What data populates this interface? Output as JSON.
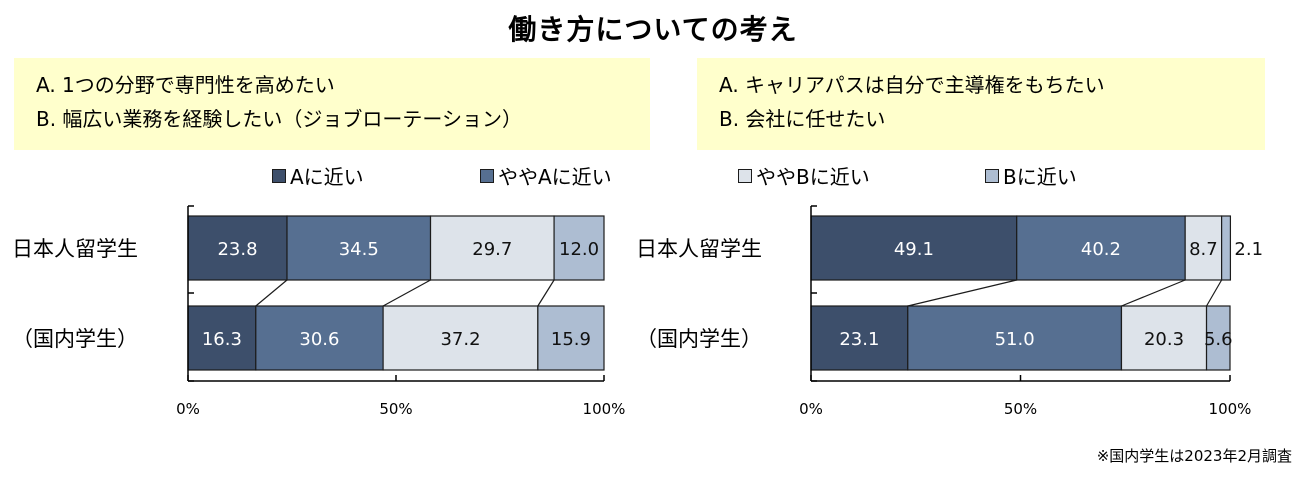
{
  "title": "働き方についての考え",
  "note": "※国内学生は2023年2月調査",
  "questions": [
    {
      "a": "A. 1つの分野で専門性を高めたい",
      "b": "B. 幅広い業務を経験したい（ジョブローテーション）"
    },
    {
      "a": "A. キャリアパスは自分で主導権をもちたい",
      "b": "B. 会社に任せたい"
    }
  ],
  "legend": [
    {
      "label": "Aに近い",
      "color": "#3d4f6b"
    },
    {
      "label": "ややAに近い",
      "color": "#566f91"
    },
    {
      "label": "ややBに近い",
      "color": "#dde3ea"
    },
    {
      "label": "Bに近い",
      "color": "#adbdd2"
    }
  ],
  "chart_data": [
    {
      "type": "bar",
      "stacked": true,
      "orientation": "horizontal",
      "percent": true,
      "categories": [
        "日本人留学生",
        "（国内学生）"
      ],
      "series": [
        {
          "name": "Aに近い",
          "values": [
            23.8,
            16.3
          ]
        },
        {
          "name": "ややAに近い",
          "values": [
            34.5,
            30.6
          ]
        },
        {
          "name": "ややBに近い",
          "values": [
            29.7,
            37.2
          ]
        },
        {
          "name": "Bに近い",
          "values": [
            12.0,
            15.9
          ]
        }
      ],
      "value_labels": [
        [
          "23.8",
          "34.5",
          "29.7",
          "12.0"
        ],
        [
          "16.3",
          "30.6",
          "37.2",
          "15.9"
        ]
      ],
      "xlim": [
        0,
        100
      ],
      "xticks": [
        "0%",
        "50%",
        "100%"
      ],
      "series_lines": true,
      "legend_position": "top"
    },
    {
      "type": "bar",
      "stacked": true,
      "orientation": "horizontal",
      "percent": true,
      "categories": [
        "日本人留学生",
        "（国内学生）"
      ],
      "series": [
        {
          "name": "Aに近い",
          "values": [
            49.1,
            23.1
          ]
        },
        {
          "name": "ややAに近い",
          "values": [
            40.2,
            51.0
          ]
        },
        {
          "name": "ややBに近い",
          "values": [
            8.7,
            20.3
          ]
        },
        {
          "name": "Bに近い",
          "values": [
            2.1,
            5.6
          ]
        }
      ],
      "value_labels": [
        [
          "49.1",
          "40.2",
          "8.7",
          "2.1"
        ],
        [
          "23.1",
          "51.0",
          "20.3",
          "5.6"
        ]
      ],
      "xlim": [
        0,
        100
      ],
      "xticks": [
        "0%",
        "50%",
        "100%"
      ],
      "series_lines": true,
      "legend_position": "top"
    }
  ]
}
